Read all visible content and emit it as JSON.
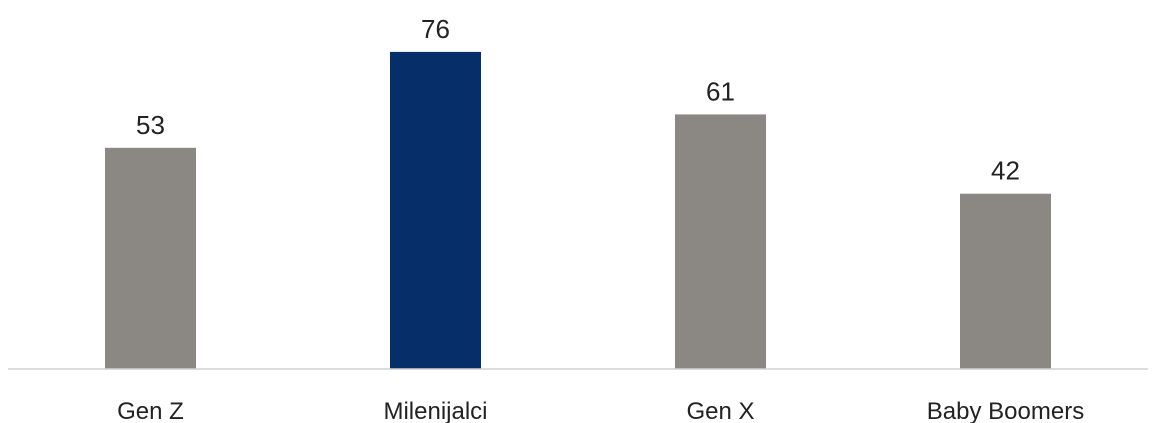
{
  "chart_data": {
    "type": "bar",
    "categories": [
      "Gen Z",
      "Milenijalci",
      "Gen X",
      "Baby Boomers"
    ],
    "values": [
      53,
      76,
      61,
      42
    ],
    "title": "",
    "xlabel": "",
    "ylabel": "",
    "ylim": [
      0,
      80
    ],
    "grid": false,
    "legend": "none",
    "data_labels": true,
    "colors": [
      "#8b8884",
      "#062e69",
      "#8b8884",
      "#8b8884"
    ],
    "axis_color": "#d0d0d0"
  }
}
